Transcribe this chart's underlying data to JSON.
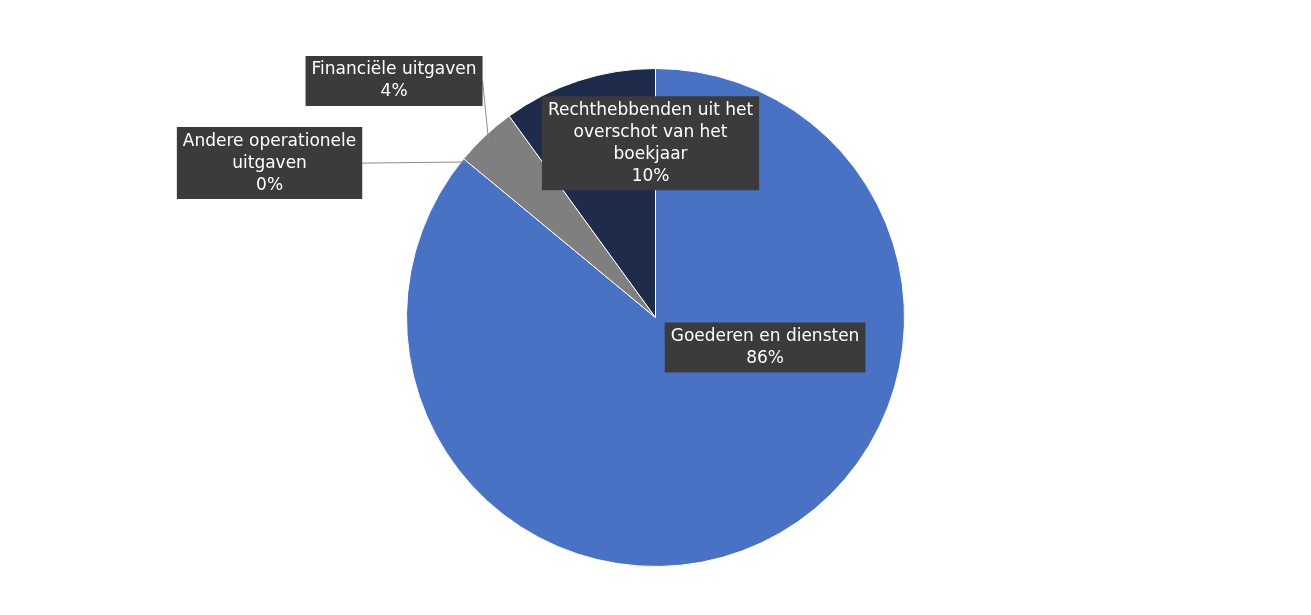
{
  "chart_data": {
    "type": "pie",
    "categories": [
      "Goederen en diensten",
      "Andere operationele uitgaven",
      "Financiële uitgaven",
      "Rechthebbenden uit het overschot van het boekjaar"
    ],
    "values": [
      86,
      0,
      4,
      10
    ],
    "colors": [
      "#4a72c4",
      "#a5a5a5",
      "#7f7f7f",
      "#1f2b4a"
    ],
    "value_labels": [
      "86%",
      "0%",
      "4%",
      "10%"
    ],
    "legend": false
  }
}
